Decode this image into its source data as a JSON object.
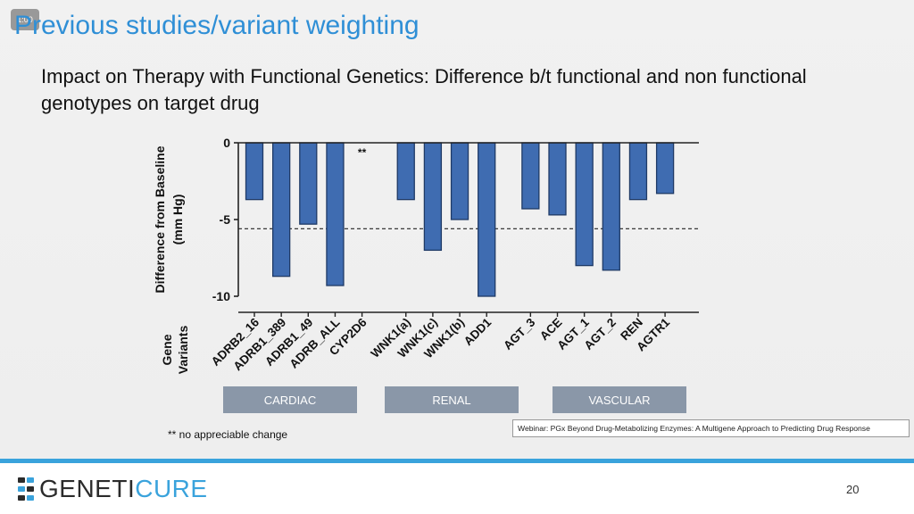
{
  "timer_badge": "1:00",
  "slide": {
    "title": "Previous studies/variant weighting",
    "subtitle": "Impact on Therapy with Functional Genetics: Difference b/t functional and non functional genotypes on target drug",
    "footnote": "** no appreciable change",
    "webinar_caption": "Webinar: PGx Beyond Drug-Metabolizing Enzymes: A Multigene Approach to Predicting Drug Response",
    "page_number": "20"
  },
  "logo": {
    "text_dark": "GENETI",
    "text_accent": "CURE"
  },
  "colors": {
    "bar": "#3f6cb1",
    "bar_edge": "#1f3a66",
    "accent": "#2f8fd6",
    "footer": "#3aa3dc",
    "group_box": "#8a97a8"
  },
  "chart_data": {
    "type": "bar",
    "ylabel": "Difference from Baseline (mm Hg)",
    "xlabel": "Gene Variants",
    "ylim": [
      -10,
      0
    ],
    "yticks": [
      "0",
      "-5",
      "-10"
    ],
    "reference_line": -5.6,
    "categories": [
      "ADRB2_16",
      "ADRB1_389",
      "ADRB1_49",
      "ADRB_ALL",
      "CYP2D6",
      "WNK1(a)",
      "WNK1(c)",
      "WNK1(b)",
      "ADD1",
      "AGT_3",
      "ACE",
      "AGT_1",
      "AGT_2",
      "REN",
      "AGTR1"
    ],
    "values": [
      -3.7,
      -8.7,
      -5.3,
      -9.3,
      null,
      -3.7,
      -7.0,
      -5.0,
      -10.0,
      -4.3,
      -4.7,
      -8.0,
      -8.3,
      -3.7,
      -3.3
    ],
    "annotations": [
      {
        "category": "CYP2D6",
        "text": "**"
      }
    ],
    "groups": [
      {
        "label": "CARDIAC",
        "categories": [
          "ADRB2_16",
          "ADRB1_389",
          "ADRB1_49",
          "ADRB_ALL",
          "CYP2D6"
        ]
      },
      {
        "label": "RENAL",
        "categories": [
          "WNK1(a)",
          "WNK1(c)",
          "WNK1(b)",
          "ADD1"
        ]
      },
      {
        "label": "VASCULAR",
        "categories": [
          "AGT_3",
          "ACE",
          "AGT_1",
          "AGT_2",
          "REN",
          "AGTR1"
        ]
      }
    ]
  }
}
